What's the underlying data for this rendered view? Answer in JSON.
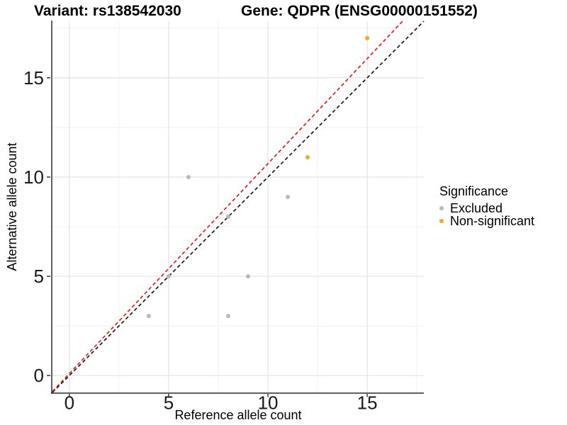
{
  "chart_data": {
    "type": "scatter",
    "titles": {
      "left": "Variant: rs138542030",
      "right": "Gene: QDPR (ENSG00000151552)"
    },
    "xlabel": "Reference allele count",
    "ylabel": "Alternative allele count",
    "xlim": [
      -0.85,
      17.85
    ],
    "ylim": [
      -0.85,
      17.85
    ],
    "xticks": [
      0,
      5,
      10,
      15
    ],
    "yticks": [
      0,
      5,
      10,
      15
    ],
    "xticks_minor": [
      2.5,
      7.5,
      12.5,
      17.5
    ],
    "yticks_minor": [
      2.5,
      7.5,
      12.5,
      17.5
    ],
    "grid": "major+minor",
    "colors": {
      "grid_major": "#E3E3E3",
      "grid_minor": "#F1F1F1",
      "axis": "#2B2B2B",
      "tick_label": "#1A1A1A"
    },
    "series": [
      {
        "name": "Excluded",
        "color": "#B9B9B9",
        "marker": "circle",
        "points": [
          [
            4,
            3
          ],
          [
            8,
            3
          ],
          [
            5,
            5
          ],
          [
            9,
            5
          ],
          [
            8,
            8
          ],
          [
            6,
            10
          ],
          [
            11,
            9
          ]
        ]
      },
      {
        "name": "Non-significant",
        "color": "#FFA41B",
        "marker": "circle",
        "points": [
          [
            12,
            11
          ],
          [
            15,
            17
          ]
        ]
      }
    ],
    "reference_lines": [
      {
        "name": "identity",
        "style": "dashed",
        "color": "#1A1A1A",
        "from": [
          -0.85,
          -0.85
        ],
        "to": [
          17.85,
          17.85
        ]
      },
      {
        "name": "expected-ratio",
        "style": "dashed",
        "color": "#E8201E",
        "from": [
          -0.85,
          -0.8
        ],
        "to": [
          16.78,
          17.85
        ]
      }
    ],
    "legend": {
      "title": "Significance",
      "position": "right",
      "entries": [
        {
          "label": "Excluded",
          "color": "#B9B9B9"
        },
        {
          "label": "Non-significant",
          "color": "#FFA41B"
        }
      ]
    }
  }
}
